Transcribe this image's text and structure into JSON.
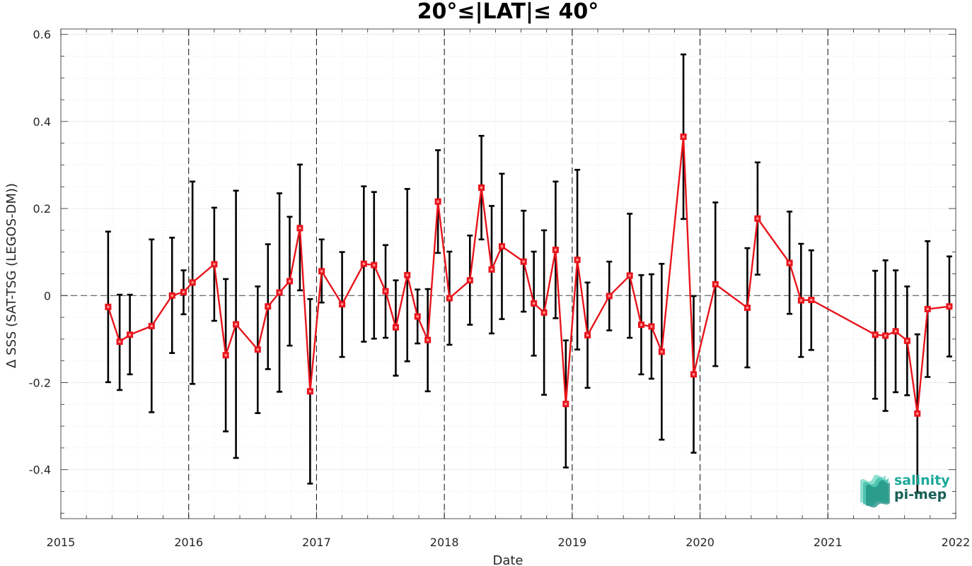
{
  "chart_data": {
    "type": "line",
    "title": "20°≤|LAT|≤ 40°",
    "xlabel": "Date",
    "ylabel": "Δ SSS (SAT-TSG (LEGOS-DM))",
    "xlim": [
      2015,
      2022
    ],
    "ylim": [
      -0.5125,
      0.6125
    ],
    "x_ticks": [
      "2015",
      "2016",
      "2017",
      "2018",
      "2019",
      "2020",
      "2021",
      "2022"
    ],
    "y_ticks": [
      -0.4,
      -0.2,
      0,
      0.2,
      0.4,
      0.6
    ],
    "y_tick_labels": [
      "-0.4",
      "-0.2",
      "0",
      "0.2",
      "0.4",
      "0.6"
    ],
    "grid": true,
    "year_dividers": [
      2016,
      2017,
      2018,
      2019,
      2020,
      2021
    ],
    "zero_line": 0,
    "series": [
      {
        "color": "#e8141c",
        "errorbar_color": "#000000",
        "marker": "square",
        "points": [
          {
            "x": 2015.37,
            "y": -0.026,
            "lo": -0.199,
            "hi": 0.147
          },
          {
            "x": 2015.46,
            "y": -0.106,
            "lo": -0.217,
            "hi": 0.002
          },
          {
            "x": 2015.54,
            "y": -0.09,
            "lo": -0.181,
            "hi": 0.002
          },
          {
            "x": 2015.71,
            "y": -0.07,
            "lo": -0.268,
            "hi": 0.129
          },
          {
            "x": 2015.87,
            "y": 0.0,
            "lo": -0.132,
            "hi": 0.133
          },
          {
            "x": 2015.96,
            "y": 0.008,
            "lo": -0.043,
            "hi": 0.058
          },
          {
            "x": 2016.03,
            "y": 0.03,
            "lo": -0.203,
            "hi": 0.262
          },
          {
            "x": 2016.2,
            "y": 0.072,
            "lo": -0.058,
            "hi": 0.202
          },
          {
            "x": 2016.29,
            "y": -0.137,
            "lo": -0.312,
            "hi": 0.038
          },
          {
            "x": 2016.37,
            "y": -0.066,
            "lo": -0.373,
            "hi": 0.241
          },
          {
            "x": 2016.54,
            "y": -0.124,
            "lo": -0.27,
            "hi": 0.021
          },
          {
            "x": 2016.62,
            "y": -0.025,
            "lo": -0.169,
            "hi": 0.118
          },
          {
            "x": 2016.71,
            "y": 0.007,
            "lo": -0.221,
            "hi": 0.235
          },
          {
            "x": 2016.79,
            "y": 0.033,
            "lo": -0.115,
            "hi": 0.181
          },
          {
            "x": 2016.87,
            "y": 0.155,
            "lo": 0.012,
            "hi": 0.301
          },
          {
            "x": 2016.95,
            "y": -0.22,
            "lo": -0.432,
            "hi": -0.008
          },
          {
            "x": 2017.04,
            "y": 0.056,
            "lo": -0.016,
            "hi": 0.129
          },
          {
            "x": 2017.2,
            "y": -0.02,
            "lo": -0.141,
            "hi": 0.1
          },
          {
            "x": 2017.37,
            "y": 0.073,
            "lo": -0.106,
            "hi": 0.251
          },
          {
            "x": 2017.45,
            "y": 0.07,
            "lo": -0.099,
            "hi": 0.238
          },
          {
            "x": 2017.54,
            "y": 0.01,
            "lo": -0.097,
            "hi": 0.116
          },
          {
            "x": 2017.62,
            "y": -0.073,
            "lo": -0.184,
            "hi": 0.035
          },
          {
            "x": 2017.71,
            "y": 0.047,
            "lo": -0.151,
            "hi": 0.245
          },
          {
            "x": 2017.79,
            "y": -0.048,
            "lo": -0.11,
            "hi": 0.014
          },
          {
            "x": 2017.87,
            "y": -0.102,
            "lo": -0.22,
            "hi": 0.015
          },
          {
            "x": 2017.95,
            "y": 0.216,
            "lo": 0.098,
            "hi": 0.334
          },
          {
            "x": 2018.04,
            "y": -0.006,
            "lo": -0.113,
            "hi": 0.101
          },
          {
            "x": 2018.2,
            "y": 0.035,
            "lo": -0.067,
            "hi": 0.138
          },
          {
            "x": 2018.29,
            "y": 0.248,
            "lo": 0.129,
            "hi": 0.367
          },
          {
            "x": 2018.37,
            "y": 0.06,
            "lo": -0.087,
            "hi": 0.206
          },
          {
            "x": 2018.45,
            "y": 0.113,
            "lo": -0.054,
            "hi": 0.28
          },
          {
            "x": 2018.62,
            "y": 0.078,
            "lo": -0.037,
            "hi": 0.195
          },
          {
            "x": 2018.7,
            "y": -0.018,
            "lo": -0.138,
            "hi": 0.101
          },
          {
            "x": 2018.78,
            "y": -0.039,
            "lo": -0.228,
            "hi": 0.15
          },
          {
            "x": 2018.87,
            "y": 0.105,
            "lo": -0.052,
            "hi": 0.262
          },
          {
            "x": 2018.95,
            "y": -0.249,
            "lo": -0.395,
            "hi": -0.103
          },
          {
            "x": 2019.04,
            "y": 0.082,
            "lo": -0.124,
            "hi": 0.289
          },
          {
            "x": 2019.12,
            "y": -0.091,
            "lo": -0.212,
            "hi": 0.03
          },
          {
            "x": 2019.29,
            "y": -0.001,
            "lo": -0.08,
            "hi": 0.078
          },
          {
            "x": 2019.45,
            "y": 0.046,
            "lo": -0.097,
            "hi": 0.188
          },
          {
            "x": 2019.54,
            "y": -0.067,
            "lo": -0.181,
            "hi": 0.047
          },
          {
            "x": 2019.62,
            "y": -0.071,
            "lo": -0.191,
            "hi": 0.049
          },
          {
            "x": 2019.7,
            "y": -0.129,
            "lo": -0.331,
            "hi": 0.073
          },
          {
            "x": 2019.87,
            "y": 0.365,
            "lo": 0.176,
            "hi": 0.554
          },
          {
            "x": 2019.95,
            "y": -0.181,
            "lo": -0.361,
            "hi": -0.001
          },
          {
            "x": 2020.12,
            "y": 0.026,
            "lo": -0.162,
            "hi": 0.214
          },
          {
            "x": 2020.37,
            "y": -0.028,
            "lo": -0.165,
            "hi": 0.109
          },
          {
            "x": 2020.45,
            "y": 0.177,
            "lo": 0.048,
            "hi": 0.306
          },
          {
            "x": 2020.7,
            "y": 0.075,
            "lo": -0.042,
            "hi": 0.193
          },
          {
            "x": 2020.79,
            "y": -0.011,
            "lo": -0.141,
            "hi": 0.119
          },
          {
            "x": 2020.87,
            "y": -0.01,
            "lo": -0.125,
            "hi": 0.104
          },
          {
            "x": 2021.37,
            "y": -0.09,
            "lo": -0.237,
            "hi": 0.057
          },
          {
            "x": 2021.45,
            "y": -0.092,
            "lo": -0.265,
            "hi": 0.081
          },
          {
            "x": 2021.53,
            "y": -0.082,
            "lo": -0.222,
            "hi": 0.058
          },
          {
            "x": 2021.62,
            "y": -0.104,
            "lo": -0.229,
            "hi": 0.021
          },
          {
            "x": 2021.7,
            "y": -0.271,
            "lo": -0.453,
            "hi": -0.089
          },
          {
            "x": 2021.78,
            "y": -0.031,
            "lo": -0.187,
            "hi": 0.125
          },
          {
            "x": 2021.95,
            "y": -0.025,
            "lo": -0.14,
            "hi": 0.09
          }
        ]
      }
    ]
  },
  "logo": {
    "line1": "salinity",
    "line2": "pi-mep",
    "color1": "#1aa99a",
    "color2": "#175f57"
  }
}
